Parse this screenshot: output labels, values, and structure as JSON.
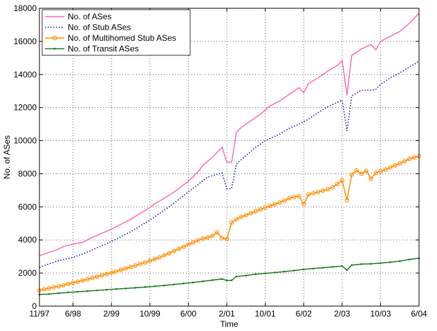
{
  "chart_data": {
    "type": "line",
    "xlabel": "Time",
    "ylabel": "No. of ASes",
    "ylim": [
      0,
      18000
    ],
    "xlim": [
      "1997-11",
      "2004-06"
    ],
    "x_ticks": [
      "11/97",
      "6/98",
      "2/99",
      "10/99",
      "6/00",
      "2/01",
      "10/01",
      "6/02",
      "2/03",
      "10/03",
      "6/04"
    ],
    "y_ticks": [
      0,
      2000,
      4000,
      6000,
      8000,
      10000,
      12000,
      14000,
      16000,
      18000
    ],
    "grid": true,
    "legend_position": "top-left",
    "series": [
      {
        "name": "No. of ASes",
        "color": "#ff69b4",
        "style": "solid",
        "marker": "none",
        "points": [
          [
            "1997-11",
            3050
          ],
          [
            "1998-01",
            3250
          ],
          [
            "1998-03",
            3450
          ],
          [
            "1998-04",
            3600
          ],
          [
            "1998-06",
            3750
          ],
          [
            "1998-08",
            3850
          ],
          [
            "1998-10",
            4150
          ],
          [
            "1998-12",
            4400
          ],
          [
            "1999-02",
            4650
          ],
          [
            "1999-04",
            4950
          ],
          [
            "1999-06",
            5250
          ],
          [
            "1999-08",
            5600
          ],
          [
            "1999-10",
            5950
          ],
          [
            "1999-11",
            6200
          ],
          [
            "1999-12",
            6350
          ],
          [
            "2000-02",
            6700
          ],
          [
            "2000-04",
            7100
          ],
          [
            "2000-06",
            7550
          ],
          [
            "2000-08",
            8100
          ],
          [
            "2000-09",
            8500
          ],
          [
            "2000-11",
            9000
          ],
          [
            "2001-01",
            9600
          ],
          [
            "2001-02",
            8700
          ],
          [
            "2001-03",
            8700
          ],
          [
            "2001-04",
            10500
          ],
          [
            "2001-05",
            10800
          ],
          [
            "2001-07",
            11200
          ],
          [
            "2001-09",
            11600
          ],
          [
            "2001-11",
            12100
          ],
          [
            "2002-01",
            12400
          ],
          [
            "2002-03",
            12800
          ],
          [
            "2002-05",
            13200
          ],
          [
            "2002-06",
            12900
          ],
          [
            "2002-07",
            13450
          ],
          [
            "2002-09",
            13800
          ],
          [
            "2002-11",
            14200
          ],
          [
            "2003-01",
            14550
          ],
          [
            "2003-02",
            14850
          ],
          [
            "2003-03",
            12750
          ],
          [
            "2003-04",
            15150
          ],
          [
            "2003-06",
            15550
          ],
          [
            "2003-08",
            15800
          ],
          [
            "2003-09",
            15500
          ],
          [
            "2003-10",
            16000
          ],
          [
            "2003-12",
            16300
          ],
          [
            "2004-02",
            16600
          ],
          [
            "2004-04",
            17100
          ],
          [
            "2004-06",
            17700
          ]
        ]
      },
      {
        "name": "No. of Stub ASes",
        "color": "#1010dd",
        "style": "dotted",
        "marker": "none",
        "points": [
          [
            "1997-11",
            2350
          ],
          [
            "1998-01",
            2550
          ],
          [
            "1998-03",
            2750
          ],
          [
            "1998-06",
            2950
          ],
          [
            "1998-08",
            3150
          ],
          [
            "1998-10",
            3400
          ],
          [
            "1998-12",
            3650
          ],
          [
            "1999-02",
            3900
          ],
          [
            "1999-04",
            4200
          ],
          [
            "1999-06",
            4500
          ],
          [
            "1999-08",
            4850
          ],
          [
            "1999-10",
            5200
          ],
          [
            "1999-12",
            5600
          ],
          [
            "2000-02",
            6000
          ],
          [
            "2000-04",
            6450
          ],
          [
            "2000-06",
            6900
          ],
          [
            "2000-08",
            7350
          ],
          [
            "2000-10",
            7800
          ],
          [
            "2001-01",
            8050
          ],
          [
            "2001-02",
            7100
          ],
          [
            "2001-03",
            7100
          ],
          [
            "2001-04",
            8600
          ],
          [
            "2001-06",
            9100
          ],
          [
            "2001-08",
            9600
          ],
          [
            "2001-10",
            10000
          ],
          [
            "2002-01",
            10400
          ],
          [
            "2002-03",
            10750
          ],
          [
            "2002-05",
            11000
          ],
          [
            "2002-07",
            11300
          ],
          [
            "2002-09",
            11700
          ],
          [
            "2002-11",
            12050
          ],
          [
            "2003-02",
            12450
          ],
          [
            "2003-03",
            10600
          ],
          [
            "2003-04",
            12700
          ],
          [
            "2003-06",
            13050
          ],
          [
            "2003-08",
            13050
          ],
          [
            "2003-09",
            13100
          ],
          [
            "2003-10",
            13400
          ],
          [
            "2003-12",
            13800
          ],
          [
            "2004-02",
            14100
          ],
          [
            "2004-04",
            14450
          ],
          [
            "2004-06",
            14800
          ]
        ]
      },
      {
        "name": "No. of Multihomed Stub ASes",
        "color": "#ff8c00",
        "style": "solid",
        "marker": "circle",
        "points": [
          [
            "1997-11",
            950
          ],
          [
            "1997-12",
            1020
          ],
          [
            "1998-01",
            1080
          ],
          [
            "1998-02",
            1140
          ],
          [
            "1998-03",
            1200
          ],
          [
            "1998-04",
            1270
          ],
          [
            "1998-05",
            1340
          ],
          [
            "1998-06",
            1410
          ],
          [
            "1998-07",
            1480
          ],
          [
            "1998-08",
            1550
          ],
          [
            "1998-09",
            1620
          ],
          [
            "1998-10",
            1700
          ],
          [
            "1998-11",
            1780
          ],
          [
            "1998-12",
            1860
          ],
          [
            "1999-01",
            1940
          ],
          [
            "1999-02",
            2020
          ],
          [
            "1999-03",
            2100
          ],
          [
            "1999-04",
            2190
          ],
          [
            "1999-05",
            2280
          ],
          [
            "1999-06",
            2370
          ],
          [
            "1999-07",
            2460
          ],
          [
            "1999-08",
            2550
          ],
          [
            "1999-09",
            2640
          ],
          [
            "1999-10",
            2740
          ],
          [
            "1999-11",
            2840
          ],
          [
            "1999-12",
            2950
          ],
          [
            "2000-01",
            3080
          ],
          [
            "2000-02",
            3200
          ],
          [
            "2000-03",
            3330
          ],
          [
            "2000-04",
            3460
          ],
          [
            "2000-05",
            3590
          ],
          [
            "2000-06",
            3720
          ],
          [
            "2000-07",
            3850
          ],
          [
            "2000-08",
            3970
          ],
          [
            "2000-09",
            4080
          ],
          [
            "2000-10",
            4150
          ],
          [
            "2000-11",
            4250
          ],
          [
            "2000-12",
            4450
          ],
          [
            "2001-01",
            4100
          ],
          [
            "2001-02",
            4050
          ],
          [
            "2001-03",
            5050
          ],
          [
            "2001-04",
            5250
          ],
          [
            "2001-05",
            5400
          ],
          [
            "2001-06",
            5500
          ],
          [
            "2001-07",
            5620
          ],
          [
            "2001-08",
            5730
          ],
          [
            "2001-09",
            5840
          ],
          [
            "2001-10",
            5950
          ],
          [
            "2001-11",
            6060
          ],
          [
            "2001-12",
            6160
          ],
          [
            "2002-01",
            6260
          ],
          [
            "2002-02",
            6380
          ],
          [
            "2002-03",
            6520
          ],
          [
            "2002-04",
            6600
          ],
          [
            "2002-05",
            6650
          ],
          [
            "2002-06",
            6170
          ],
          [
            "2002-07",
            6750
          ],
          [
            "2002-08",
            6820
          ],
          [
            "2002-09",
            6900
          ],
          [
            "2002-10",
            6980
          ],
          [
            "2002-11",
            7060
          ],
          [
            "2002-12",
            7180
          ],
          [
            "2003-01",
            7380
          ],
          [
            "2003-02",
            7600
          ],
          [
            "2003-03",
            6400
          ],
          [
            "2003-04",
            7950
          ],
          [
            "2003-05",
            8200
          ],
          [
            "2003-06",
            8000
          ],
          [
            "2003-07",
            8180
          ],
          [
            "2003-08",
            7700
          ],
          [
            "2003-09",
            8050
          ],
          [
            "2003-10",
            8150
          ],
          [
            "2003-11",
            8250
          ],
          [
            "2003-12",
            8380
          ],
          [
            "2004-01",
            8500
          ],
          [
            "2004-02",
            8620
          ],
          [
            "2004-03",
            8760
          ],
          [
            "2004-04",
            8900
          ],
          [
            "2004-05",
            9000
          ],
          [
            "2004-06",
            9060
          ]
        ]
      },
      {
        "name": "No. of Transit ASes",
        "color": "#1a7a1a",
        "style": "solid",
        "marker": "dot",
        "points": [
          [
            "1997-11",
            700
          ],
          [
            "1998-01",
            730
          ],
          [
            "1998-03",
            780
          ],
          [
            "1998-05",
            830
          ],
          [
            "1998-07",
            870
          ],
          [
            "1998-09",
            910
          ],
          [
            "1998-11",
            950
          ],
          [
            "1999-01",
            990
          ],
          [
            "1999-03",
            1030
          ],
          [
            "1999-05",
            1070
          ],
          [
            "1999-07",
            1110
          ],
          [
            "1999-09",
            1150
          ],
          [
            "1999-11",
            1200
          ],
          [
            "2000-01",
            1250
          ],
          [
            "2000-03",
            1310
          ],
          [
            "2000-05",
            1370
          ],
          [
            "2000-07",
            1430
          ],
          [
            "2000-09",
            1500
          ],
          [
            "2000-11",
            1570
          ],
          [
            "2001-01",
            1640
          ],
          [
            "2001-02",
            1550
          ],
          [
            "2001-03",
            1560
          ],
          [
            "2001-04",
            1790
          ],
          [
            "2001-06",
            1850
          ],
          [
            "2001-08",
            1930
          ],
          [
            "2001-10",
            1980
          ],
          [
            "2001-12",
            2030
          ],
          [
            "2002-02",
            2090
          ],
          [
            "2002-04",
            2150
          ],
          [
            "2002-06",
            2220
          ],
          [
            "2002-08",
            2270
          ],
          [
            "2002-10",
            2320
          ],
          [
            "2002-12",
            2370
          ],
          [
            "2003-02",
            2420
          ],
          [
            "2003-03",
            2180
          ],
          [
            "2003-04",
            2480
          ],
          [
            "2003-06",
            2540
          ],
          [
            "2003-08",
            2560
          ],
          [
            "2003-10",
            2600
          ],
          [
            "2003-12",
            2650
          ],
          [
            "2004-02",
            2720
          ],
          [
            "2004-04",
            2820
          ],
          [
            "2004-06",
            2900
          ]
        ]
      }
    ]
  }
}
